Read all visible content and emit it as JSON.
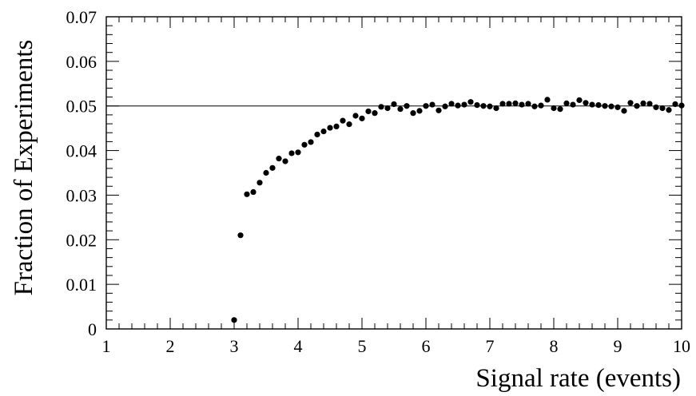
{
  "chart_data": {
    "type": "scatter",
    "title": "",
    "xlabel": "Signal rate (events)",
    "ylabel": "Fraction of Experiments",
    "xlim": [
      1,
      10
    ],
    "ylim": [
      0,
      0.07
    ],
    "xticks": [
      "1",
      "2",
      "3",
      "4",
      "5",
      "6",
      "7",
      "8",
      "9",
      "10"
    ],
    "yticks": [
      "0",
      "0.01",
      "0.02",
      "0.03",
      "0.04",
      "0.05",
      "0.06",
      "0.07"
    ],
    "reference_line": {
      "y": 0.05
    },
    "grid": false,
    "legend": "none",
    "marker_color": "#000000",
    "x": [
      3.0,
      3.1,
      3.2,
      3.3,
      3.4,
      3.5,
      3.6,
      3.7,
      3.8,
      3.9,
      4.0,
      4.1,
      4.2,
      4.3,
      4.4,
      4.5,
      4.6,
      4.7,
      4.8,
      4.9,
      5.0,
      5.1,
      5.2,
      5.3,
      5.4,
      5.5,
      5.6,
      5.7,
      5.8,
      5.9,
      6.0,
      6.1,
      6.2,
      6.3,
      6.4,
      6.5,
      6.6,
      6.7,
      6.8,
      6.9,
      7.0,
      7.1,
      7.2,
      7.3,
      7.4,
      7.5,
      7.6,
      7.7,
      7.8,
      7.9,
      8.0,
      8.1,
      8.2,
      8.3,
      8.4,
      8.5,
      8.6,
      8.7,
      8.8,
      8.9,
      9.0,
      9.1,
      9.2,
      9.3,
      9.4,
      9.5,
      9.6,
      9.7,
      9.8,
      9.9,
      10.0
    ],
    "y": [
      0.002,
      0.021,
      0.0302,
      0.0307,
      0.0328,
      0.035,
      0.0361,
      0.0382,
      0.0376,
      0.0394,
      0.0396,
      0.0413,
      0.0419,
      0.0436,
      0.0443,
      0.0451,
      0.0454,
      0.0467,
      0.0459,
      0.0478,
      0.0472,
      0.0488,
      0.0484,
      0.0498,
      0.0495,
      0.0504,
      0.0493,
      0.05,
      0.0484,
      0.0489,
      0.05,
      0.0503,
      0.049,
      0.0499,
      0.0505,
      0.0501,
      0.0503,
      0.0509,
      0.0502,
      0.05,
      0.0499,
      0.0495,
      0.0505,
      0.0505,
      0.0506,
      0.0503,
      0.0505,
      0.0499,
      0.0501,
      0.0514,
      0.0495,
      0.0493,
      0.0506,
      0.0503,
      0.0513,
      0.0507,
      0.0503,
      0.0502,
      0.05,
      0.0499,
      0.0497,
      0.0489,
      0.0507,
      0.05,
      0.0506,
      0.0505,
      0.0497,
      0.0495,
      0.0491,
      0.0504,
      0.0501
    ]
  }
}
